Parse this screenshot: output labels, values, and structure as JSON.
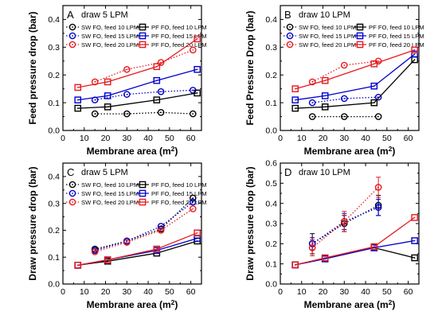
{
  "chart_data": [
    {
      "type": "line",
      "panel_letter": "A",
      "panel_title": "draw 5 LPM",
      "xlabel": "Membrane area",
      "xlabel_unit": "(m",
      "xlabel_sup": "2",
      "xlabel_close": ")",
      "ylabel": "Feed pressure drop (bar)",
      "xlim": [
        0,
        65
      ],
      "ylim": [
        0,
        0.45
      ],
      "xticks": [
        "0",
        "10",
        "20",
        "30",
        "40",
        "50",
        "60"
      ],
      "yticks": [
        "0.0",
        "0.1",
        "0.2",
        "0.3",
        "0.4"
      ],
      "legend": [
        {
          "label": "SW FO, feed 10 LPM",
          "color": "#000000",
          "marker": "circle",
          "dash": "dot"
        },
        {
          "label": "SW FO, feed 15 LPM",
          "color": "#0000cc",
          "marker": "circle",
          "dash": "dot"
        },
        {
          "label": "SW FO, feed 20 LPM",
          "color": "#e6191e",
          "marker": "circle",
          "dash": "dot"
        },
        {
          "label": "PF FO, feed 10 LPM",
          "color": "#000000",
          "marker": "square",
          "dash": "solid"
        },
        {
          "label": "PF FO, feed 15 LPM",
          "color": "#0000cc",
          "marker": "square",
          "dash": "solid"
        },
        {
          "label": "PF FO, feed 20 LPM",
          "color": "#e6191e",
          "marker": "square",
          "dash": "solid"
        }
      ],
      "series": [
        {
          "name": "SW FO, feed 10 LPM",
          "color": "#000000",
          "marker": "circle",
          "dash": "dot",
          "x": [
            15,
            30,
            46,
            61
          ],
          "y": [
            0.06,
            0.06,
            0.065,
            0.06
          ]
        },
        {
          "name": "SW FO, feed 15 LPM",
          "color": "#0000cc",
          "marker": "circle",
          "dash": "dot",
          "x": [
            15,
            30,
            46,
            61
          ],
          "y": [
            0.11,
            0.13,
            0.14,
            0.145
          ]
        },
        {
          "name": "SW FO, feed 20 LPM",
          "color": "#e6191e",
          "marker": "circle",
          "dash": "dot",
          "x": [
            15,
            30,
            46,
            61
          ],
          "y": [
            0.175,
            0.22,
            0.245,
            0.29
          ]
        },
        {
          "name": "PF FO, feed 10 LPM",
          "color": "#000000",
          "marker": "square",
          "dash": "solid",
          "x": [
            7,
            21,
            44,
            63
          ],
          "y": [
            0.08,
            0.085,
            0.11,
            0.135
          ]
        },
        {
          "name": "PF FO, feed 15 LPM",
          "color": "#0000cc",
          "marker": "square",
          "dash": "solid",
          "x": [
            7,
            21,
            44,
            63
          ],
          "y": [
            0.11,
            0.125,
            0.18,
            0.22
          ]
        },
        {
          "name": "PF FO, feed 20 LPM",
          "color": "#e6191e",
          "marker": "square",
          "dash": "solid",
          "x": [
            7,
            21,
            44,
            63
          ],
          "y": [
            0.155,
            0.175,
            0.23,
            0.33
          ]
        }
      ]
    },
    {
      "type": "line",
      "panel_letter": "B",
      "panel_title": "draw 10 LPM",
      "xlabel": "Membrane area",
      "xlabel_unit": "(m",
      "xlabel_sup": "2",
      "xlabel_close": ")",
      "ylabel": "Feed Pressure Drop (bar)",
      "xlim": [
        0,
        65
      ],
      "ylim": [
        0,
        0.45
      ],
      "xticks": [
        "0",
        "10",
        "20",
        "30",
        "40",
        "50",
        "60"
      ],
      "yticks": [
        "0.0",
        "0.1",
        "0.2",
        "0.3",
        "0.4"
      ],
      "legend": [
        {
          "label": "SW FO, feed 10 LPM",
          "color": "#000000",
          "marker": "circle",
          "dash": "dot"
        },
        {
          "label": "SW FO, feed 15 LPM",
          "color": "#0000cc",
          "marker": "circle",
          "dash": "dot"
        },
        {
          "label": "SW FO, feed 20 LPM",
          "color": "#e6191e",
          "marker": "circle",
          "dash": "dot"
        },
        {
          "label": "PF FO, feed 10 LPM",
          "color": "#000000",
          "marker": "square",
          "dash": "solid"
        },
        {
          "label": "PF FO, feed 15 LPM",
          "color": "#0000cc",
          "marker": "square",
          "dash": "solid"
        },
        {
          "label": "PF FO, feed 20 LPM",
          "color": "#e6191e",
          "marker": "square",
          "dash": "solid"
        }
      ],
      "series": [
        {
          "name": "SW FO, feed 10 LPM",
          "color": "#000000",
          "marker": "circle",
          "dash": "dot",
          "x": [
            15,
            30,
            46
          ],
          "y": [
            0.05,
            0.05,
            0.05
          ]
        },
        {
          "name": "SW FO, feed 15 LPM",
          "color": "#0000cc",
          "marker": "circle",
          "dash": "dot",
          "x": [
            15,
            30,
            46
          ],
          "y": [
            0.1,
            0.115,
            0.12
          ]
        },
        {
          "name": "SW FO, feed 20 LPM",
          "color": "#e6191e",
          "marker": "circle",
          "dash": "dot",
          "x": [
            15,
            30,
            46
          ],
          "y": [
            0.175,
            0.235,
            0.25
          ]
        },
        {
          "name": "PF FO, feed 10 LPM",
          "color": "#000000",
          "marker": "square",
          "dash": "solid",
          "x": [
            7,
            21,
            44,
            63
          ],
          "y": [
            0.08,
            0.085,
            0.1,
            0.255
          ]
        },
        {
          "name": "PF FO, feed 15 LPM",
          "color": "#0000cc",
          "marker": "square",
          "dash": "solid",
          "x": [
            7,
            21,
            44,
            63
          ],
          "y": [
            0.11,
            0.125,
            0.16,
            0.275
          ]
        },
        {
          "name": "PF FO, feed 20 LPM",
          "color": "#e6191e",
          "marker": "square",
          "dash": "solid",
          "x": [
            7,
            21,
            44,
            63
          ],
          "y": [
            0.15,
            0.18,
            0.24,
            0.29
          ]
        }
      ]
    },
    {
      "type": "line",
      "panel_letter": "C",
      "panel_title": "draw 5 LPM",
      "xlabel": "Membrane area",
      "xlabel_unit": "(m",
      "xlabel_sup": "2",
      "xlabel_close": ")",
      "ylabel": "Draw pressure drop (bar)",
      "xlim": [
        0,
        65
      ],
      "ylim": [
        0,
        0.45
      ],
      "xticks": [
        "0",
        "10",
        "20",
        "30",
        "40",
        "50",
        "60"
      ],
      "yticks": [
        "0.0",
        "0.1",
        "0.2",
        "0.3",
        "0.4"
      ],
      "legend": [
        {
          "label": "SW FO, feed 10 LPM",
          "color": "#000000",
          "marker": "circle",
          "dash": "dot"
        },
        {
          "label": "SW FO, feed 15 LPM",
          "color": "#0000cc",
          "marker": "circle",
          "dash": "dot"
        },
        {
          "label": "SW FO, feed 20 LPM",
          "color": "#e6191e",
          "marker": "circle",
          "dash": "dot"
        },
        {
          "label": "PF FO, feed 10 LPM",
          "color": "#000000",
          "marker": "square",
          "dash": "solid"
        },
        {
          "label": "PF FO, feed 15 LPM",
          "color": "#0000cc",
          "marker": "square",
          "dash": "solid"
        },
        {
          "label": "PF FO, feed 20 LPM",
          "color": "#e6191e",
          "marker": "square",
          "dash": "solid"
        }
      ],
      "series": [
        {
          "name": "SW FO, feed 10 LPM",
          "color": "#000000",
          "marker": "circle",
          "dash": "dot",
          "x": [
            15,
            30,
            46,
            61
          ],
          "y": [
            0.13,
            0.16,
            0.205,
            0.32
          ]
        },
        {
          "name": "SW FO, feed 15 LPM",
          "color": "#0000cc",
          "marker": "circle",
          "dash": "dot",
          "x": [
            15,
            30,
            46,
            61
          ],
          "y": [
            0.125,
            0.16,
            0.215,
            0.305
          ]
        },
        {
          "name": "SW FO, feed 20 LPM",
          "color": "#e6191e",
          "marker": "circle",
          "dash": "dot",
          "x": [
            15,
            30,
            46,
            61
          ],
          "y": [
            0.12,
            0.155,
            0.2,
            0.28
          ]
        },
        {
          "name": "PF FO, feed 10 LPM",
          "color": "#000000",
          "marker": "square",
          "dash": "solid",
          "x": [
            7,
            21,
            44,
            63
          ],
          "y": [
            0.07,
            0.085,
            0.115,
            0.16
          ]
        },
        {
          "name": "PF FO, feed 15 LPM",
          "color": "#0000cc",
          "marker": "square",
          "dash": "solid",
          "x": [
            7,
            21,
            44,
            63
          ],
          "y": [
            0.07,
            0.09,
            0.125,
            0.17
          ]
        },
        {
          "name": "PF FO, feed 20 LPM",
          "color": "#e6191e",
          "marker": "square",
          "dash": "solid",
          "x": [
            7,
            21,
            44,
            63
          ],
          "y": [
            0.07,
            0.09,
            0.13,
            0.19
          ]
        }
      ]
    },
    {
      "type": "line",
      "panel_letter": "D",
      "panel_title": "draw 10 LPM",
      "xlabel": "Membrane area",
      "xlabel_unit": "(m",
      "xlabel_sup": "2",
      "xlabel_close": ")",
      "ylabel": "Draw pressure drop (bar)",
      "xlim": [
        0,
        65
      ],
      "ylim": [
        0,
        0.6
      ],
      "xticks": [
        "0",
        "10",
        "20",
        "30",
        "40",
        "50",
        "60"
      ],
      "yticks": [
        "0.0",
        "0.1",
        "0.2",
        "0.3",
        "0.4",
        "0.5",
        "0.6"
      ],
      "legend": [],
      "series": [
        {
          "name": "SW FO, feed 10 LPM",
          "color": "#000000",
          "marker": "circle",
          "dash": "dot",
          "x": [
            15,
            30,
            46
          ],
          "y": [
            0.2,
            0.3,
            0.39
          ],
          "err": [
            0.05,
            0.04,
            0.05
          ]
        },
        {
          "name": "SW FO, feed 15 LPM",
          "color": "#0000cc",
          "marker": "circle",
          "dash": "dot",
          "x": [
            15,
            30,
            46
          ],
          "y": [
            0.2,
            0.31,
            0.38
          ],
          "err": [
            0.03,
            0.04,
            0.04
          ]
        },
        {
          "name": "SW FO, feed 20 LPM",
          "color": "#e6191e",
          "marker": "circle",
          "dash": "dot",
          "x": [
            15,
            30,
            46
          ],
          "y": [
            0.18,
            0.31,
            0.48
          ],
          "err": [
            0.04,
            0.05,
            0.05
          ]
        },
        {
          "name": "PF FO, feed 10 LPM",
          "color": "#000000",
          "marker": "square",
          "dash": "solid",
          "x": [
            7,
            21,
            44,
            63
          ],
          "y": [
            0.095,
            0.125,
            0.18,
            0.13
          ]
        },
        {
          "name": "PF FO, feed 15 LPM",
          "color": "#0000cc",
          "marker": "square",
          "dash": "solid",
          "x": [
            7,
            21,
            44,
            63
          ],
          "y": [
            0.095,
            0.125,
            0.18,
            0.215
          ]
        },
        {
          "name": "PF FO, feed 20 LPM",
          "color": "#e6191e",
          "marker": "square",
          "dash": "solid",
          "x": [
            7,
            21,
            44,
            63
          ],
          "y": [
            0.095,
            0.13,
            0.185,
            0.33
          ]
        }
      ]
    }
  ]
}
